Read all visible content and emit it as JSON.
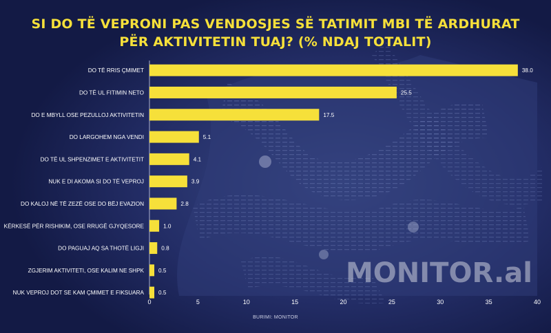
{
  "title_line1": "SI DO TË VEPRONI PAS VENDOSJES SË TATIMIT MBI TË ARDHURAT",
  "title_line2": "PËR AKTIVITETIN TUAJ? (% NDAJ TOTALIT)",
  "watermark": "MONITOR.al",
  "source": "BURIMI: MONITOR",
  "colors": {
    "bar": "#f6e03a",
    "title": "#f6e03a",
    "background": "#131a45",
    "text": "#ffffff"
  },
  "chart_data": {
    "type": "bar",
    "orientation": "horizontal",
    "categories": [
      "DO TË RRIS ÇMIMET",
      "DO TË UL FITIMIN NETO",
      "DO E MBYLL OSE PEZULLOJ AKTIVITETIN",
      "DO LARGOHEM NGA VENDI",
      "DO TË UL SHPENZIMET E AKTIVITETIT",
      "NUK E DI AKOMA SI DO TË VEPROJ",
      "DO KALOJ NË TË ZEZË OSE DO BËJ EVAZION",
      "KËRKESË PËR RISHIKIM, OSE RRUGË GJYQESORE",
      "DO PAGUAJ AQ SA THOTË LIGJI",
      "ZGJERIM AKTIVITETI, OSE KALIM NE SHPK",
      "NUK VEPROJ DOT SE KAM ÇMIMET E FIKSUARA"
    ],
    "values": [
      38.0,
      25.5,
      17.5,
      5.1,
      4.1,
      3.9,
      2.8,
      1.0,
      0.8,
      0.5,
      0.5
    ],
    "value_labels": [
      "38.0",
      "25.5",
      "17.5",
      "5.1",
      "4.1",
      "3.9",
      "2.8",
      "1.0",
      "0.8",
      "0.5",
      "0.5"
    ],
    "xlim": [
      0,
      40
    ],
    "xticks": [
      0,
      5,
      10,
      15,
      20,
      25,
      30,
      35,
      40
    ],
    "grid": false
  }
}
